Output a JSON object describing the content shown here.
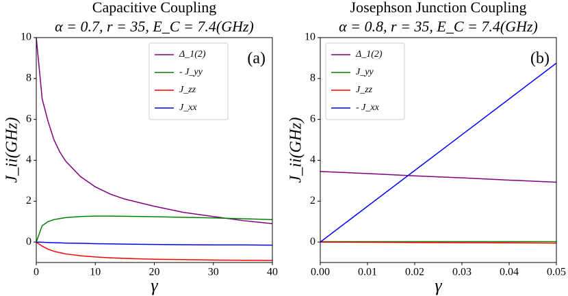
{
  "chart_data": [
    {
      "type": "line",
      "title": "Capacitive Coupling",
      "subtitle": "α = 0.7, r = 35, E_C = 7.4(GHz)",
      "x_label": "γ",
      "y_label": "J_ii(GHz)",
      "annotation": "(a)",
      "legend": "upper right",
      "x": [
        0,
        1,
        2,
        3,
        4,
        5,
        7.5,
        10,
        12.5,
        15,
        20,
        25,
        30,
        35,
        40
      ],
      "series": [
        {
          "name": "Δ_1(2)",
          "color": "#800080",
          "values": [
            10,
            7.0,
            5.9,
            5.0,
            4.4,
            3.95,
            3.2,
            2.7,
            2.35,
            2.1,
            1.75,
            1.45,
            1.25,
            1.05,
            0.9
          ]
        },
        {
          "name": "- J_yy",
          "color": "#008000",
          "values": [
            0,
            0.8,
            1.0,
            1.1,
            1.15,
            1.2,
            1.25,
            1.27,
            1.27,
            1.26,
            1.24,
            1.21,
            1.18,
            1.14,
            1.1
          ]
        },
        {
          "name": "J_zz",
          "color": "#ff0000",
          "values": [
            0,
            -0.2,
            -0.35,
            -0.45,
            -0.52,
            -0.58,
            -0.67,
            -0.73,
            -0.77,
            -0.8,
            -0.84,
            -0.86,
            -0.88,
            -0.89,
            -0.9
          ]
        },
        {
          "name": "J_xx",
          "color": "#0000ff",
          "values": [
            0,
            -0.01,
            -0.02,
            -0.03,
            -0.04,
            -0.05,
            -0.06,
            -0.08,
            -0.09,
            -0.1,
            -0.12,
            -0.13,
            -0.14,
            -0.14,
            -0.15
          ]
        }
      ],
      "xlim": [
        0,
        40
      ],
      "xticks": [
        0,
        10,
        20,
        30,
        40
      ],
      "ylim": [
        -1,
        10
      ],
      "yticks": [
        0,
        2,
        4,
        6,
        8,
        10
      ]
    },
    {
      "type": "line",
      "title": "Josephson Junction Coupling",
      "subtitle": "α = 0.8, r = 35, E_C = 7.4(GHz)",
      "x_label": "γ",
      "y_label": "J_ii(GHz)",
      "annotation": "(b)",
      "legend": "upper left",
      "x": [
        0,
        0.01,
        0.02,
        0.03,
        0.04,
        0.05
      ],
      "series": [
        {
          "name": "Δ_1(2)",
          "color": "#800080",
          "values": [
            3.45,
            3.35,
            3.24,
            3.14,
            3.03,
            2.93
          ]
        },
        {
          "name": "J_yy",
          "color": "#008000",
          "values": [
            0.02,
            0.02,
            0.02,
            0.02,
            0.02,
            0.02
          ]
        },
        {
          "name": "J_zz",
          "color": "#ff0000",
          "values": [
            0,
            -0.01,
            -0.02,
            -0.03,
            -0.04,
            -0.05
          ]
        },
        {
          "name": "- J_xx",
          "color": "#0000ff",
          "values": [
            0,
            1.75,
            3.5,
            5.25,
            7.0,
            8.75
          ]
        }
      ],
      "xlim": [
        0,
        0.05
      ],
      "xticks": [
        {
          "value": 0,
          "label": "0.00"
        },
        0.01,
        0.02,
        0.03,
        0.04,
        0.05
      ],
      "ylim": [
        -1,
        10
      ],
      "yticks": [
        0,
        2,
        4,
        6,
        8,
        10
      ]
    }
  ]
}
